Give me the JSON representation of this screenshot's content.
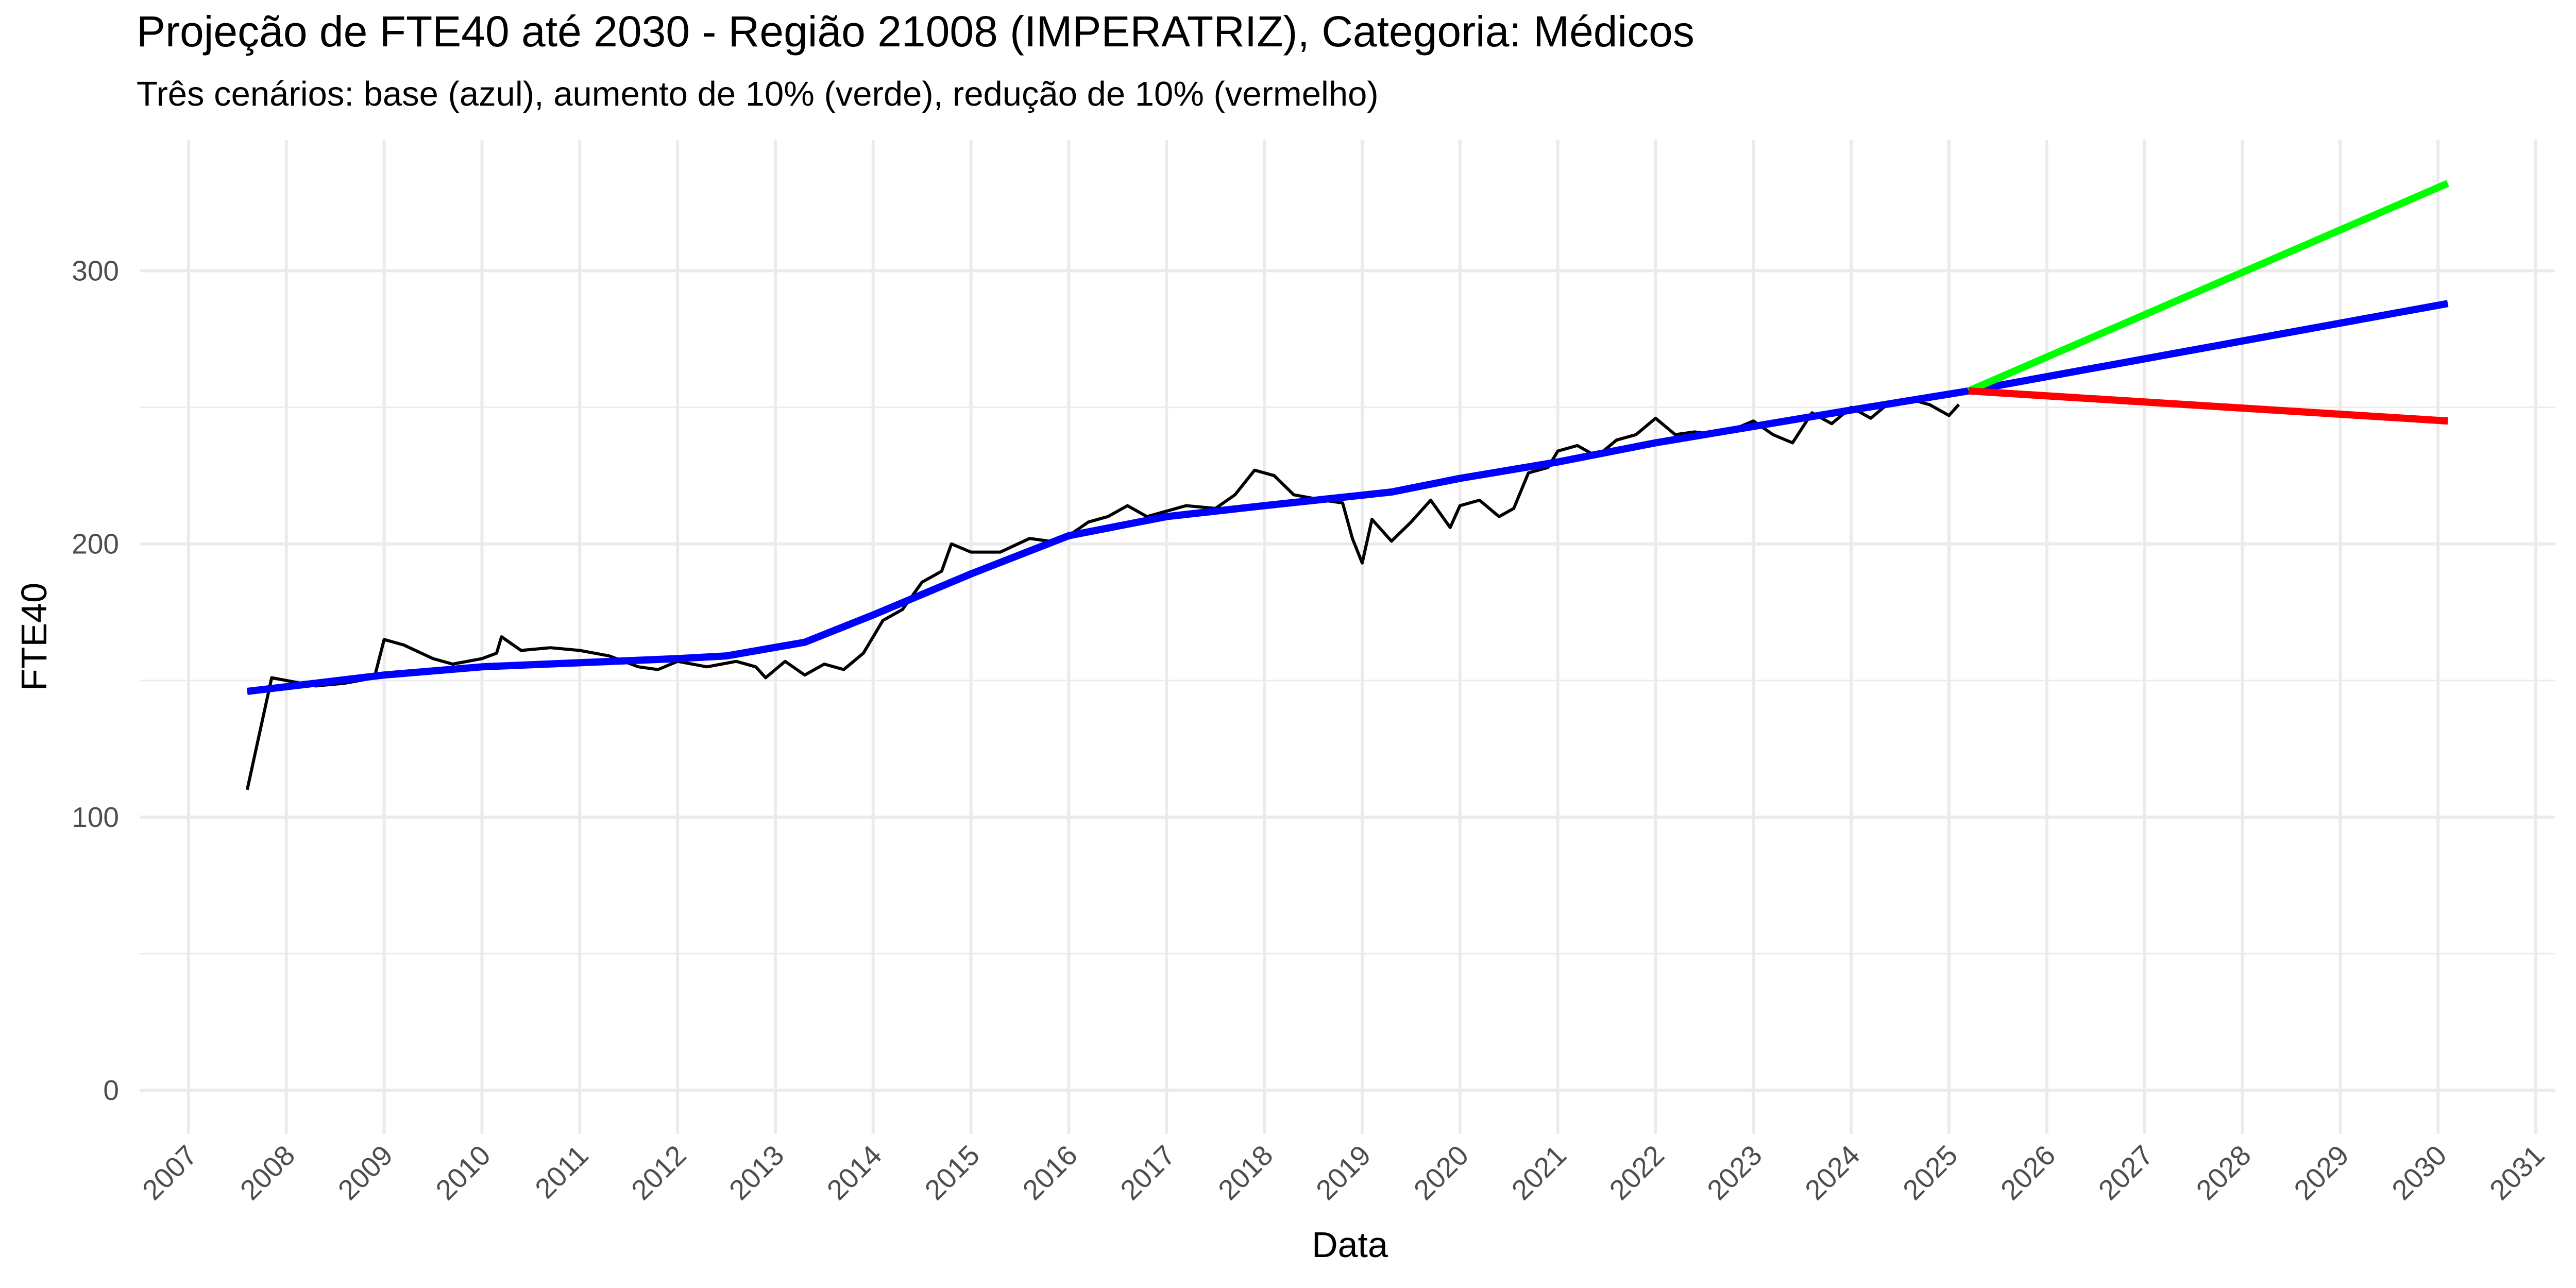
{
  "chart_data": {
    "type": "line",
    "title": "Projeção de FTE40 até 2030 - Região 21008 (IMPERATRIZ), Categoria: Médicos",
    "subtitle": "Três cenários: base (azul), aumento de 10% (verde), redução de 10% (vermelho)",
    "x_label": "Data",
    "y_label": "FTE40",
    "xlim": [
      2006.5,
      2031.2
    ],
    "ylim": [
      -16,
      348
    ],
    "xticks": [
      2007,
      2008,
      2009,
      2010,
      2011,
      2012,
      2013,
      2014,
      2015,
      2016,
      2017,
      2018,
      2019,
      2020,
      2021,
      2022,
      2023,
      2024,
      2025,
      2026,
      2027,
      2028,
      2029,
      2030,
      2031
    ],
    "yticks": [
      0,
      100,
      200,
      300
    ],
    "y_minor_ticks": [
      50,
      150,
      250
    ],
    "grid": true,
    "series": [
      {
        "color": "#000000",
        "x": [
          2007.6,
          2007.85,
          2008.0,
          2008.3,
          2008.6,
          2008.9,
          2009.0,
          2009.2,
          2009.5,
          2009.7,
          2010.0,
          2010.15,
          2010.2,
          2010.4,
          2010.7,
          2011.0,
          2011.3,
          2011.6,
          2011.8,
          2012.0,
          2012.3,
          2012.6,
          2012.8,
          2012.9,
          2013.1,
          2013.3,
          2013.5,
          2013.7,
          2013.9,
          2014.1,
          2014.3,
          2014.5,
          2014.7,
          2014.8,
          2015.0,
          2015.3,
          2015.6,
          2015.8,
          2016.0,
          2016.2,
          2016.4,
          2016.6,
          2016.8,
          2017.0,
          2017.2,
          2017.5,
          2017.7,
          2017.9,
          2018.1,
          2018.3,
          2018.6,
          2018.8,
          2018.9,
          2019.0,
          2019.1,
          2019.3,
          2019.5,
          2019.7,
          2019.9,
          2020.0,
          2020.2,
          2020.4,
          2020.55,
          2020.7,
          2020.9,
          2021.0,
          2021.2,
          2021.4,
          2021.6,
          2021.8,
          2022.0,
          2022.2,
          2022.4,
          2022.6,
          2022.8,
          2023.0,
          2023.2,
          2023.4,
          2023.6,
          2023.8,
          2024.0,
          2024.2,
          2024.4,
          2024.6,
          2024.8,
          2025.0,
          2025.1
        ],
        "values": [
          110,
          151,
          150,
          148,
          149,
          151,
          165,
          163,
          158,
          156,
          158,
          160,
          166,
          161,
          162,
          161,
          159,
          155,
          154,
          157,
          155,
          157,
          155,
          151,
          157,
          152,
          156,
          154,
          160,
          172,
          176,
          186,
          190,
          200,
          197,
          197,
          202,
          201,
          203,
          208,
          210,
          214,
          210,
          212,
          214,
          213,
          218,
          227,
          225,
          218,
          216,
          215,
          202,
          193,
          209,
          201,
          208,
          216,
          206,
          214,
          216,
          210,
          213,
          226,
          228,
          234,
          236,
          232,
          238,
          240,
          246,
          240,
          241,
          240,
          242,
          245,
          240,
          237,
          248,
          244,
          250,
          246,
          252,
          253,
          251,
          247,
          251
        ]
      },
      {
        "color": "#0000ff",
        "x": [
          2007.6,
          2009.0,
          2010.0,
          2012.0,
          2012.5,
          2013.3,
          2014.0,
          2015.0,
          2016.0,
          2017.0,
          2018.0,
          2019.3,
          2020.0,
          2021.0,
          2022.0,
          2023.0,
          2024.0,
          2025.2,
          2030.1
        ],
        "values": [
          146,
          152,
          155,
          158,
          159,
          164,
          174,
          189,
          203,
          210,
          214,
          219,
          224,
          230,
          237,
          243,
          249,
          256,
          288
        ]
      },
      {
        "color": "#00ff00",
        "x": [
          2025.2,
          2030.1
        ],
        "values": [
          256,
          332
        ]
      },
      {
        "color": "#ff0000",
        "x": [
          2025.2,
          2030.1
        ],
        "values": [
          256,
          245
        ]
      }
    ]
  }
}
